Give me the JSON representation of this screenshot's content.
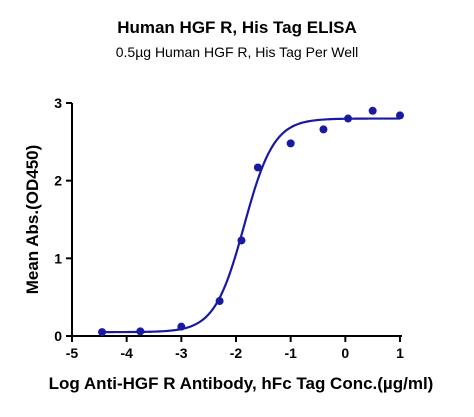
{
  "chart_data": {
    "type": "scatter",
    "title": "Human HGF R, His Tag ELISA",
    "subtitle": "0.5µg Human HGF R, His Tag Per Well",
    "xlabel": "Log Anti-HGF R Antibody, hFc Tag Conc.(µg/ml)",
    "ylabel": "Mean Abs.(OD450)",
    "xlim": [
      -5,
      1
    ],
    "ylim": [
      0,
      3
    ],
    "x_ticks": [
      "-5",
      "-4",
      "-3",
      "-2",
      "-1",
      "0",
      "1"
    ],
    "y_ticks": [
      "0",
      "1",
      "2",
      "3"
    ],
    "grid": false,
    "color": "#1a1aa0",
    "series": [
      {
        "points": [
          {
            "x": -4.45,
            "y": 0.05
          },
          {
            "x": -3.75,
            "y": 0.06
          },
          {
            "x": -3.0,
            "y": 0.12
          },
          {
            "x": -2.3,
            "y": 0.45
          },
          {
            "x": -1.9,
            "y": 1.23
          },
          {
            "x": -1.6,
            "y": 2.17
          },
          {
            "x": -1.0,
            "y": 2.48
          },
          {
            "x": -0.4,
            "y": 2.66
          },
          {
            "x": 0.05,
            "y": 2.8
          },
          {
            "x": 0.5,
            "y": 2.9
          },
          {
            "x": 1.0,
            "y": 2.84
          }
        ]
      }
    ],
    "fit": {
      "model": "4PL",
      "bottom": 0.05,
      "top": 2.8,
      "log_ec50": -1.85,
      "hill": 1.6,
      "x_range": [
        -4.45,
        1.0
      ]
    }
  }
}
